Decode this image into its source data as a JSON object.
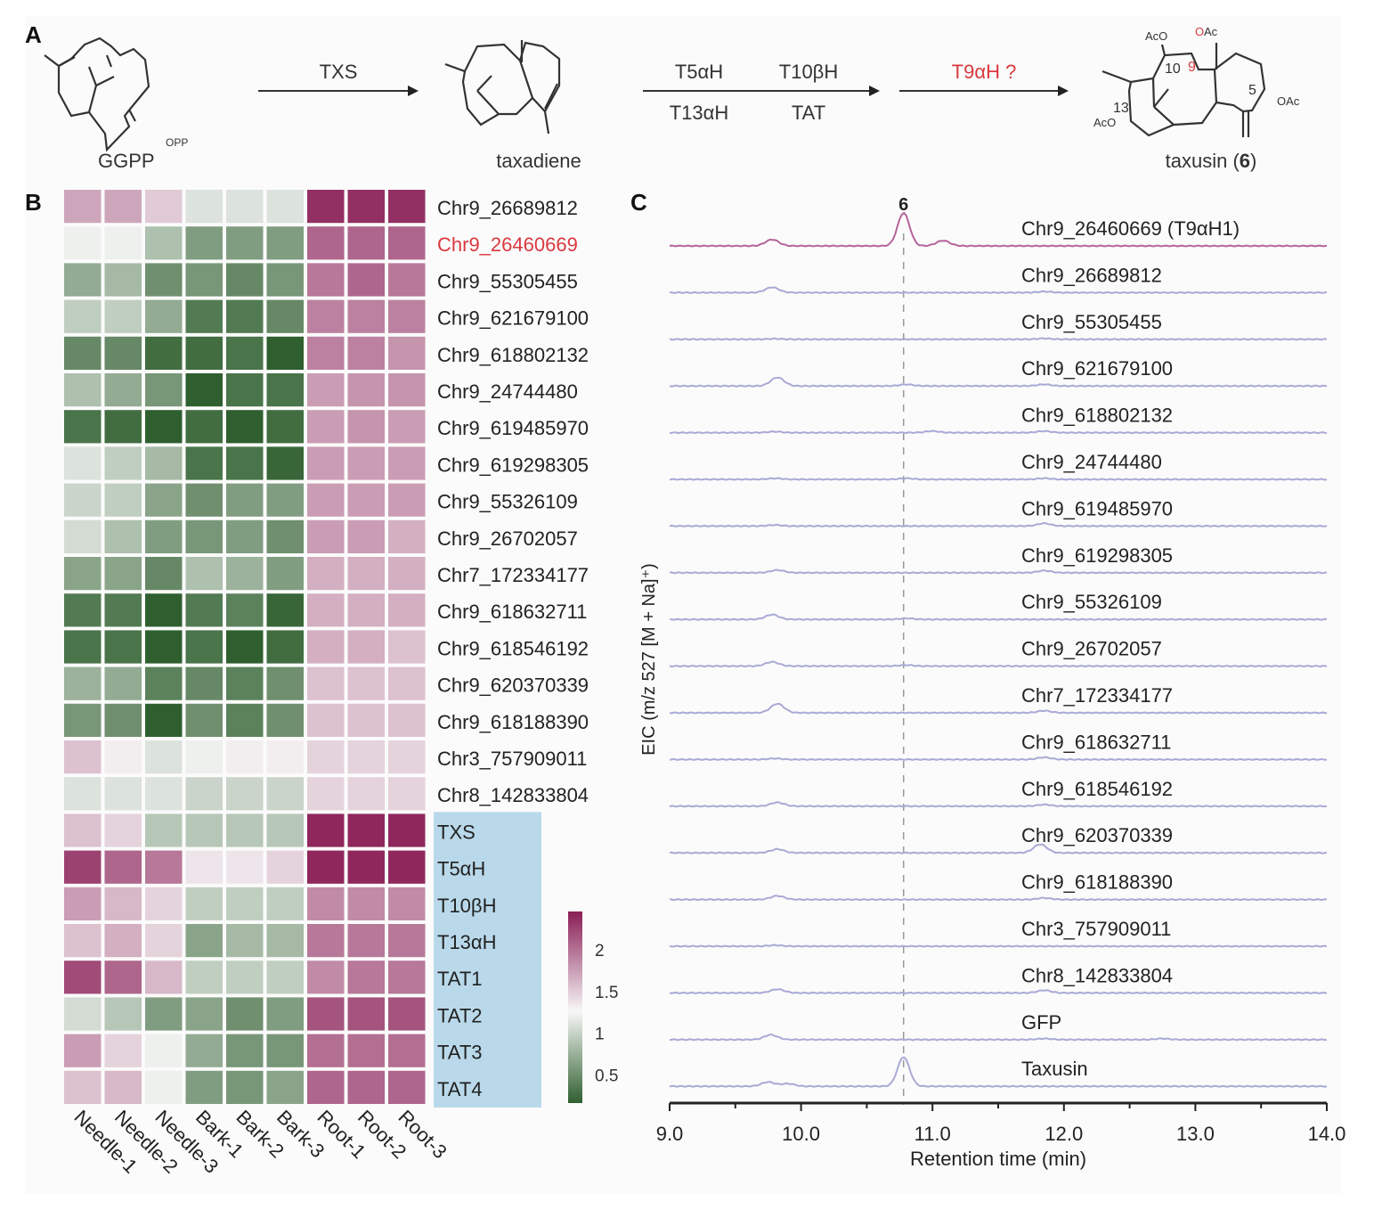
{
  "panels": {
    "a_label": "A",
    "b_label": "B",
    "c_label": "C"
  },
  "pathway": {
    "compounds": [
      {
        "name": "GGPP",
        "sub": "OPP"
      },
      {
        "name": "taxadiene"
      },
      {
        "name": "taxusin",
        "number": "6"
      }
    ],
    "steps": [
      {
        "top": [
          "TXS"
        ],
        "bottom": []
      },
      {
        "top": [
          "T5αH",
          "T10βH"
        ],
        "bottom": [
          "T13αH",
          "TAT"
        ]
      },
      {
        "top": [
          "T9αH ?"
        ],
        "bottom": [],
        "highlight": true
      }
    ],
    "taxusin_labels": {
      "aco_top": "AcO",
      "oac_top": "OAc",
      "c10": "10",
      "c9": "9",
      "c13": "13",
      "aco_left": "AcO",
      "c5": "5",
      "oac_right": "OAc",
      "paren_open": "taxusin (",
      "paren_num": "6",
      "paren_close": ")"
    },
    "highlight_color": "#d9393e"
  },
  "chart_data": [
    {
      "type": "heatmap",
      "title": "",
      "columns": [
        "Needle-1",
        "Needle-2",
        "Needle-3",
        "Bark-1",
        "Bark-2",
        "Bark-3",
        "Root-1",
        "Root-2",
        "Root-3"
      ],
      "rows": [
        {
          "label": "Chr9_26689812",
          "values": [
            1.7,
            1.7,
            1.5,
            1.1,
            1.1,
            1.1,
            2.35,
            2.35,
            2.35
          ]
        },
        {
          "label": "Chr9_26460669",
          "values": [
            1.2,
            1.2,
            0.85,
            0.6,
            0.6,
            0.6,
            2.05,
            2.05,
            2.05
          ],
          "highlight": true
        },
        {
          "label": "Chr9_55305455",
          "values": [
            0.7,
            0.8,
            0.5,
            0.55,
            0.45,
            0.55,
            1.95,
            2.05,
            1.95
          ]
        },
        {
          "label": "Chr9_621679100",
          "values": [
            0.95,
            0.95,
            0.7,
            0.35,
            0.35,
            0.45,
            1.9,
            1.9,
            1.9
          ]
        },
        {
          "label": "Chr9_618802132",
          "values": [
            0.45,
            0.45,
            0.25,
            0.25,
            0.3,
            0.15,
            1.9,
            1.9,
            1.8
          ]
        },
        {
          "label": "Chr9_24744480",
          "values": [
            0.85,
            0.7,
            0.55,
            0.15,
            0.3,
            0.3,
            1.75,
            1.8,
            1.8
          ]
        },
        {
          "label": "Chr9_619485970",
          "values": [
            0.3,
            0.25,
            0.15,
            0.25,
            0.15,
            0.25,
            1.75,
            1.8,
            1.75
          ]
        },
        {
          "label": "Chr9_619298305",
          "values": [
            1.1,
            0.95,
            0.8,
            0.3,
            0.3,
            0.2,
            1.75,
            1.75,
            1.75
          ]
        },
        {
          "label": "Chr9_55326109",
          "values": [
            1.0,
            0.95,
            0.65,
            0.5,
            0.6,
            0.6,
            1.75,
            1.75,
            1.75
          ]
        },
        {
          "label": "Chr9_26702057",
          "values": [
            1.05,
            0.85,
            0.6,
            0.55,
            0.6,
            0.5,
            1.75,
            1.75,
            1.65
          ]
        },
        {
          "label": "Chr7_172334177",
          "values": [
            0.65,
            0.65,
            0.45,
            0.85,
            0.75,
            0.6,
            1.65,
            1.65,
            1.65
          ]
        },
        {
          "label": "Chr9_618632711",
          "values": [
            0.35,
            0.35,
            0.15,
            0.35,
            0.4,
            0.2,
            1.65,
            1.65,
            1.65
          ]
        },
        {
          "label": "Chr9_618546192",
          "values": [
            0.3,
            0.3,
            0.15,
            0.3,
            0.15,
            0.25,
            1.65,
            1.65,
            1.55
          ]
        },
        {
          "label": "Chr9_620370339",
          "values": [
            0.75,
            0.7,
            0.4,
            0.45,
            0.4,
            0.5,
            1.55,
            1.55,
            1.55
          ]
        },
        {
          "label": "Chr9_618188390",
          "values": [
            0.55,
            0.5,
            0.15,
            0.5,
            0.4,
            0.5,
            1.55,
            1.55,
            1.55
          ]
        },
        {
          "label": "Chr3_757909011",
          "values": [
            1.55,
            1.3,
            1.1,
            1.2,
            1.3,
            1.3,
            1.45,
            1.45,
            1.45
          ]
        },
        {
          "label": "Chr8_142833804",
          "values": [
            1.1,
            1.1,
            1.1,
            1.0,
            1.0,
            1.0,
            1.45,
            1.45,
            1.45
          ]
        },
        {
          "label": "TXS",
          "values": [
            1.55,
            1.45,
            0.9,
            0.9,
            0.9,
            0.9,
            2.4,
            2.4,
            2.4
          ],
          "group": "known"
        },
        {
          "label": "T5αH",
          "values": [
            2.25,
            2.05,
            1.95,
            1.35,
            1.35,
            1.45,
            2.4,
            2.4,
            2.4
          ],
          "group": "known"
        },
        {
          "label": "T10βH",
          "values": [
            1.75,
            1.6,
            1.45,
            0.95,
            0.95,
            0.95,
            1.85,
            1.85,
            1.85
          ],
          "group": "known"
        },
        {
          "label": "T13αH",
          "values": [
            1.55,
            1.65,
            1.45,
            0.65,
            0.8,
            0.8,
            1.95,
            1.95,
            1.95
          ],
          "group": "known"
        },
        {
          "label": "TAT1",
          "values": [
            2.2,
            2.05,
            1.6,
            0.95,
            0.95,
            0.95,
            1.85,
            1.95,
            1.95
          ],
          "group": "known"
        },
        {
          "label": "TAT2",
          "values": [
            1.05,
            0.9,
            0.6,
            0.65,
            0.5,
            0.6,
            2.15,
            2.15,
            2.15
          ],
          "group": "known"
        },
        {
          "label": "TAT3",
          "values": [
            1.75,
            1.45,
            1.2,
            0.7,
            0.55,
            0.55,
            2.0,
            2.0,
            2.0
          ],
          "group": "known"
        },
        {
          "label": "TAT4",
          "values": [
            1.55,
            1.6,
            1.2,
            0.6,
            0.55,
            0.65,
            2.05,
            2.05,
            2.05
          ],
          "group": "known"
        }
      ],
      "colorbar": {
        "ticks": [
          "2",
          "1.5",
          "1",
          "0.5"
        ],
        "tick_values": [
          2,
          1.5,
          1,
          0.5
        ],
        "range": [
          0.15,
          2.45
        ],
        "colors": {
          "low": "#2f5f2f",
          "mid": "#f7f7f7",
          "high": "#8a1e56"
        },
        "mid_value": 1.25
      },
      "group_highlight_color": "#b9d9ea",
      "highlight_color": "#d9393e"
    },
    {
      "type": "line",
      "title": "",
      "xlabel": "Retention time (min)",
      "ylabel": "EIC (m/z 527 [M + Na]⁺)",
      "xlim": [
        9.0,
        14.0
      ],
      "x_ticks": [
        "9.0",
        "10.0",
        "11.0",
        "12.0",
        "13.0",
        "14.0"
      ],
      "x_tick_values": [
        9.0,
        10.0,
        11.0,
        12.0,
        13.0,
        14.0
      ],
      "minor_tick_step": 0.5,
      "reference_line": {
        "x": 10.78,
        "label": "6",
        "style": "dashed"
      },
      "colors": {
        "highlight": "#b5659b",
        "default": "#a9a9d6"
      },
      "series": [
        {
          "name": "Chr9_26460669 (T9αH1)",
          "highlight": true,
          "peaks": [
            [
              9.78,
              0.12
            ],
            [
              10.78,
              0.62
            ],
            [
              11.08,
              0.1
            ]
          ]
        },
        {
          "name": "Chr9_26689812",
          "peaks": [
            [
              9.78,
              0.1
            ],
            [
              11.85,
              0.02
            ]
          ]
        },
        {
          "name": "Chr9_55305455",
          "peaks": [
            [
              9.8,
              0.01
            ],
            [
              11.85,
              0.015
            ]
          ]
        },
        {
          "name": "Chr9_621679100",
          "peaks": [
            [
              9.82,
              0.16
            ],
            [
              10.8,
              0.03
            ],
            [
              11.0,
              0.0
            ],
            [
              11.85,
              0.03
            ]
          ]
        },
        {
          "name": "Chr9_618802132",
          "peaks": [
            [
              9.8,
              0.02
            ],
            [
              11.0,
              0.03
            ],
            [
              11.85,
              0.03
            ]
          ]
        },
        {
          "name": "Chr9_24744480",
          "peaks": [
            [
              9.8,
              0.02
            ],
            [
              10.8,
              0.02
            ],
            [
              11.85,
              0.02
            ]
          ]
        },
        {
          "name": "Chr9_619485970",
          "peaks": [
            [
              9.8,
              0.02
            ],
            [
              11.85,
              0.05
            ]
          ]
        },
        {
          "name": "Chr9_619298305",
          "peaks": [
            [
              9.82,
              0.05
            ],
            [
              11.85,
              0.04
            ]
          ]
        },
        {
          "name": "Chr9_55326109",
          "peaks": [
            [
              9.78,
              0.09
            ],
            [
              10.8,
              0.02
            ]
          ]
        },
        {
          "name": "Chr9_26702057",
          "peaks": [
            [
              9.78,
              0.08
            ],
            [
              10.8,
              0.02
            ]
          ]
        },
        {
          "name": "Chr7_172334177",
          "peaks": [
            [
              9.82,
              0.17
            ],
            [
              11.85,
              0.04
            ]
          ]
        },
        {
          "name": "Chr9_618632711",
          "peaks": [
            [
              9.8,
              0.02
            ],
            [
              11.85,
              0.04
            ]
          ]
        },
        {
          "name": "Chr9_618546192",
          "peaks": [
            [
              9.82,
              0.07
            ],
            [
              11.85,
              0.03
            ]
          ]
        },
        {
          "name": "Chr9_620370339",
          "peaks": [
            [
              9.82,
              0.07
            ],
            [
              11.82,
              0.16
            ]
          ]
        },
        {
          "name": "Chr9_618188390",
          "peaks": [
            [
              9.82,
              0.07
            ],
            [
              11.85,
              0.03
            ]
          ]
        },
        {
          "name": "Chr3_757909011",
          "peaks": [
            [
              9.8,
              0.02
            ]
          ]
        },
        {
          "name": "Chr8_142833804",
          "peaks": [
            [
              9.82,
              0.07
            ],
            [
              11.85,
              0.05
            ]
          ]
        },
        {
          "name": "GFP",
          "peaks": [
            [
              9.77,
              0.09
            ],
            [
              11.85,
              0.02
            ],
            [
              12.75,
              0.02
            ]
          ]
        },
        {
          "name": "Taxusin",
          "peaks": [
            [
              9.75,
              0.08
            ],
            [
              9.9,
              0.05
            ],
            [
              10.78,
              0.55
            ]
          ]
        }
      ]
    }
  ]
}
